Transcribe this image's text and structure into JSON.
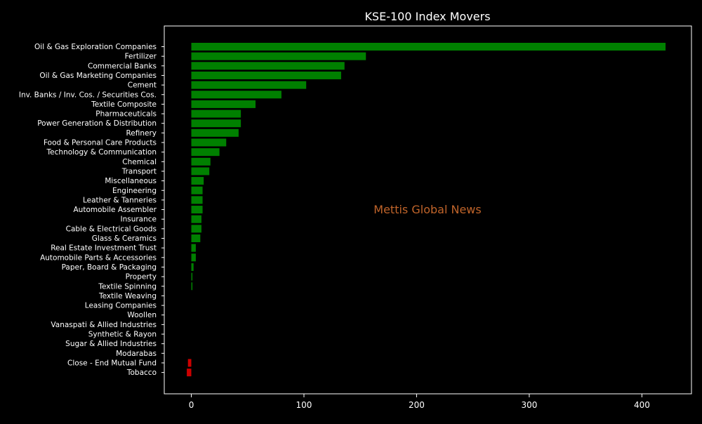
{
  "chart_data": {
    "type": "bar",
    "orientation": "horizontal",
    "title": "KSE-100 Index Movers",
    "watermark": "Mettis Global News",
    "xlabel": "",
    "ylabel": "",
    "xlim": [
      -24,
      444
    ],
    "xticks": [
      0,
      100,
      200,
      300,
      400
    ],
    "grid": false,
    "colors": {
      "background": "#000000",
      "axes": "#ffffff",
      "positive": "#008000",
      "negative": "#cc0000",
      "watermark": "#c0642a"
    },
    "categories": [
      "Oil & Gas Exploration Companies",
      "Fertilizer",
      "Commercial Banks",
      "Oil & Gas Marketing Companies",
      "Cement",
      "Inv. Banks / Inv. Cos. / Securities Cos.",
      "Textile Composite",
      "Pharmaceuticals",
      "Power Generation & Distribution",
      "Refinery",
      "Food & Personal Care Products",
      "Technology & Communication",
      "Chemical",
      "Transport",
      "Miscellaneous",
      "Engineering",
      "Leather & Tanneries",
      "Automobile Assembler",
      "Insurance",
      "Cable & Electrical Goods",
      "Glass & Ceramics",
      "Real Estate Investment Trust",
      "Automobile Parts & Accessories",
      "Paper, Board & Packaging",
      "Property",
      "Textile Spinning",
      "Textile Weaving",
      "Leasing Companies",
      "Woollen",
      "Vanaspati & Allied Industries",
      "Synthetic & Rayon",
      "Sugar & Allied Industries",
      "Modarabas",
      "Close - End Mutual Fund",
      "Tobacco"
    ],
    "values": [
      421,
      155,
      136,
      133,
      102,
      80,
      57,
      44,
      44,
      42,
      31,
      25,
      17,
      16,
      11,
      10,
      10,
      10,
      9,
      9,
      8,
      4,
      4,
      2,
      1,
      1,
      0,
      0,
      0,
      0,
      0,
      0,
      0,
      -3,
      -4
    ]
  }
}
